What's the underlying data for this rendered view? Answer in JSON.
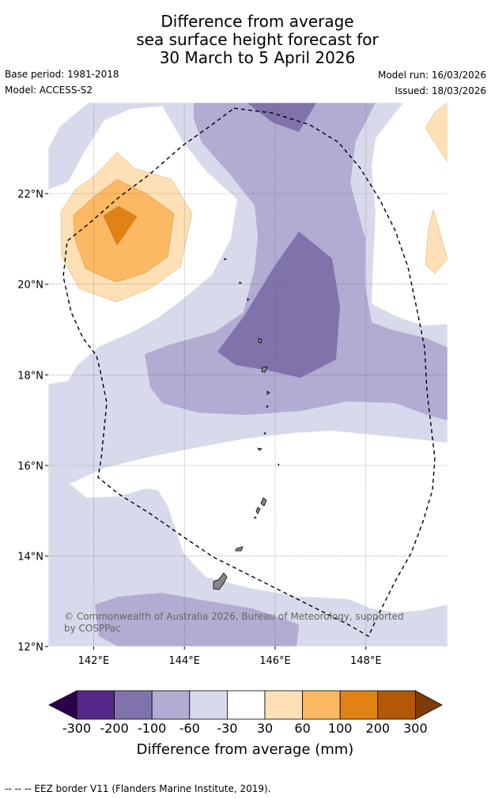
{
  "title": {
    "line1": "Difference from average",
    "line2": "sea surface height forecast for",
    "line3": "30 March to 5 April 2026"
  },
  "meta": {
    "base_period": "Base period: 1981-2018",
    "model": "Model: ACCESS-S2",
    "model_run": "Model run: 16/03/2026",
    "issued": "Issued: 18/03/2026"
  },
  "map": {
    "latitude_labels": [
      "22°N",
      "20°N",
      "18°N",
      "16°N",
      "14°N",
      "12°N"
    ],
    "longitude_labels": [
      "142°E",
      "144°E",
      "146°E",
      "148°E"
    ],
    "lat_range": [
      12,
      24
    ],
    "lon_range": [
      141,
      149.8
    ],
    "credit_line1": "© Commonwealth of Australia 2026, Bureau of Meteorology, supported",
    "credit_line2": "by COSPPac"
  },
  "colorbar": {
    "ticks": [
      "-300",
      "-200",
      "-100",
      "-60",
      "-30",
      "30",
      "60",
      "100",
      "200",
      "300"
    ],
    "label": "Difference from average (mm)",
    "colors": {
      "below_min": "#2d004b",
      "n300_200": "#542788",
      "n200_100": "#8073ac",
      "n100_60": "#b2abd2",
      "n60_30": "#d8daeb",
      "n30_30": "#ffffff",
      "p30_60": "#fee0b6",
      "p60_100": "#fdb863",
      "p100_200": "#e08214",
      "p200_300": "#b35806",
      "above_max": "#7f3b08"
    }
  },
  "footnote": "--  --  -- EEZ border V11 (Flanders Marine Institute, 2019)."
}
